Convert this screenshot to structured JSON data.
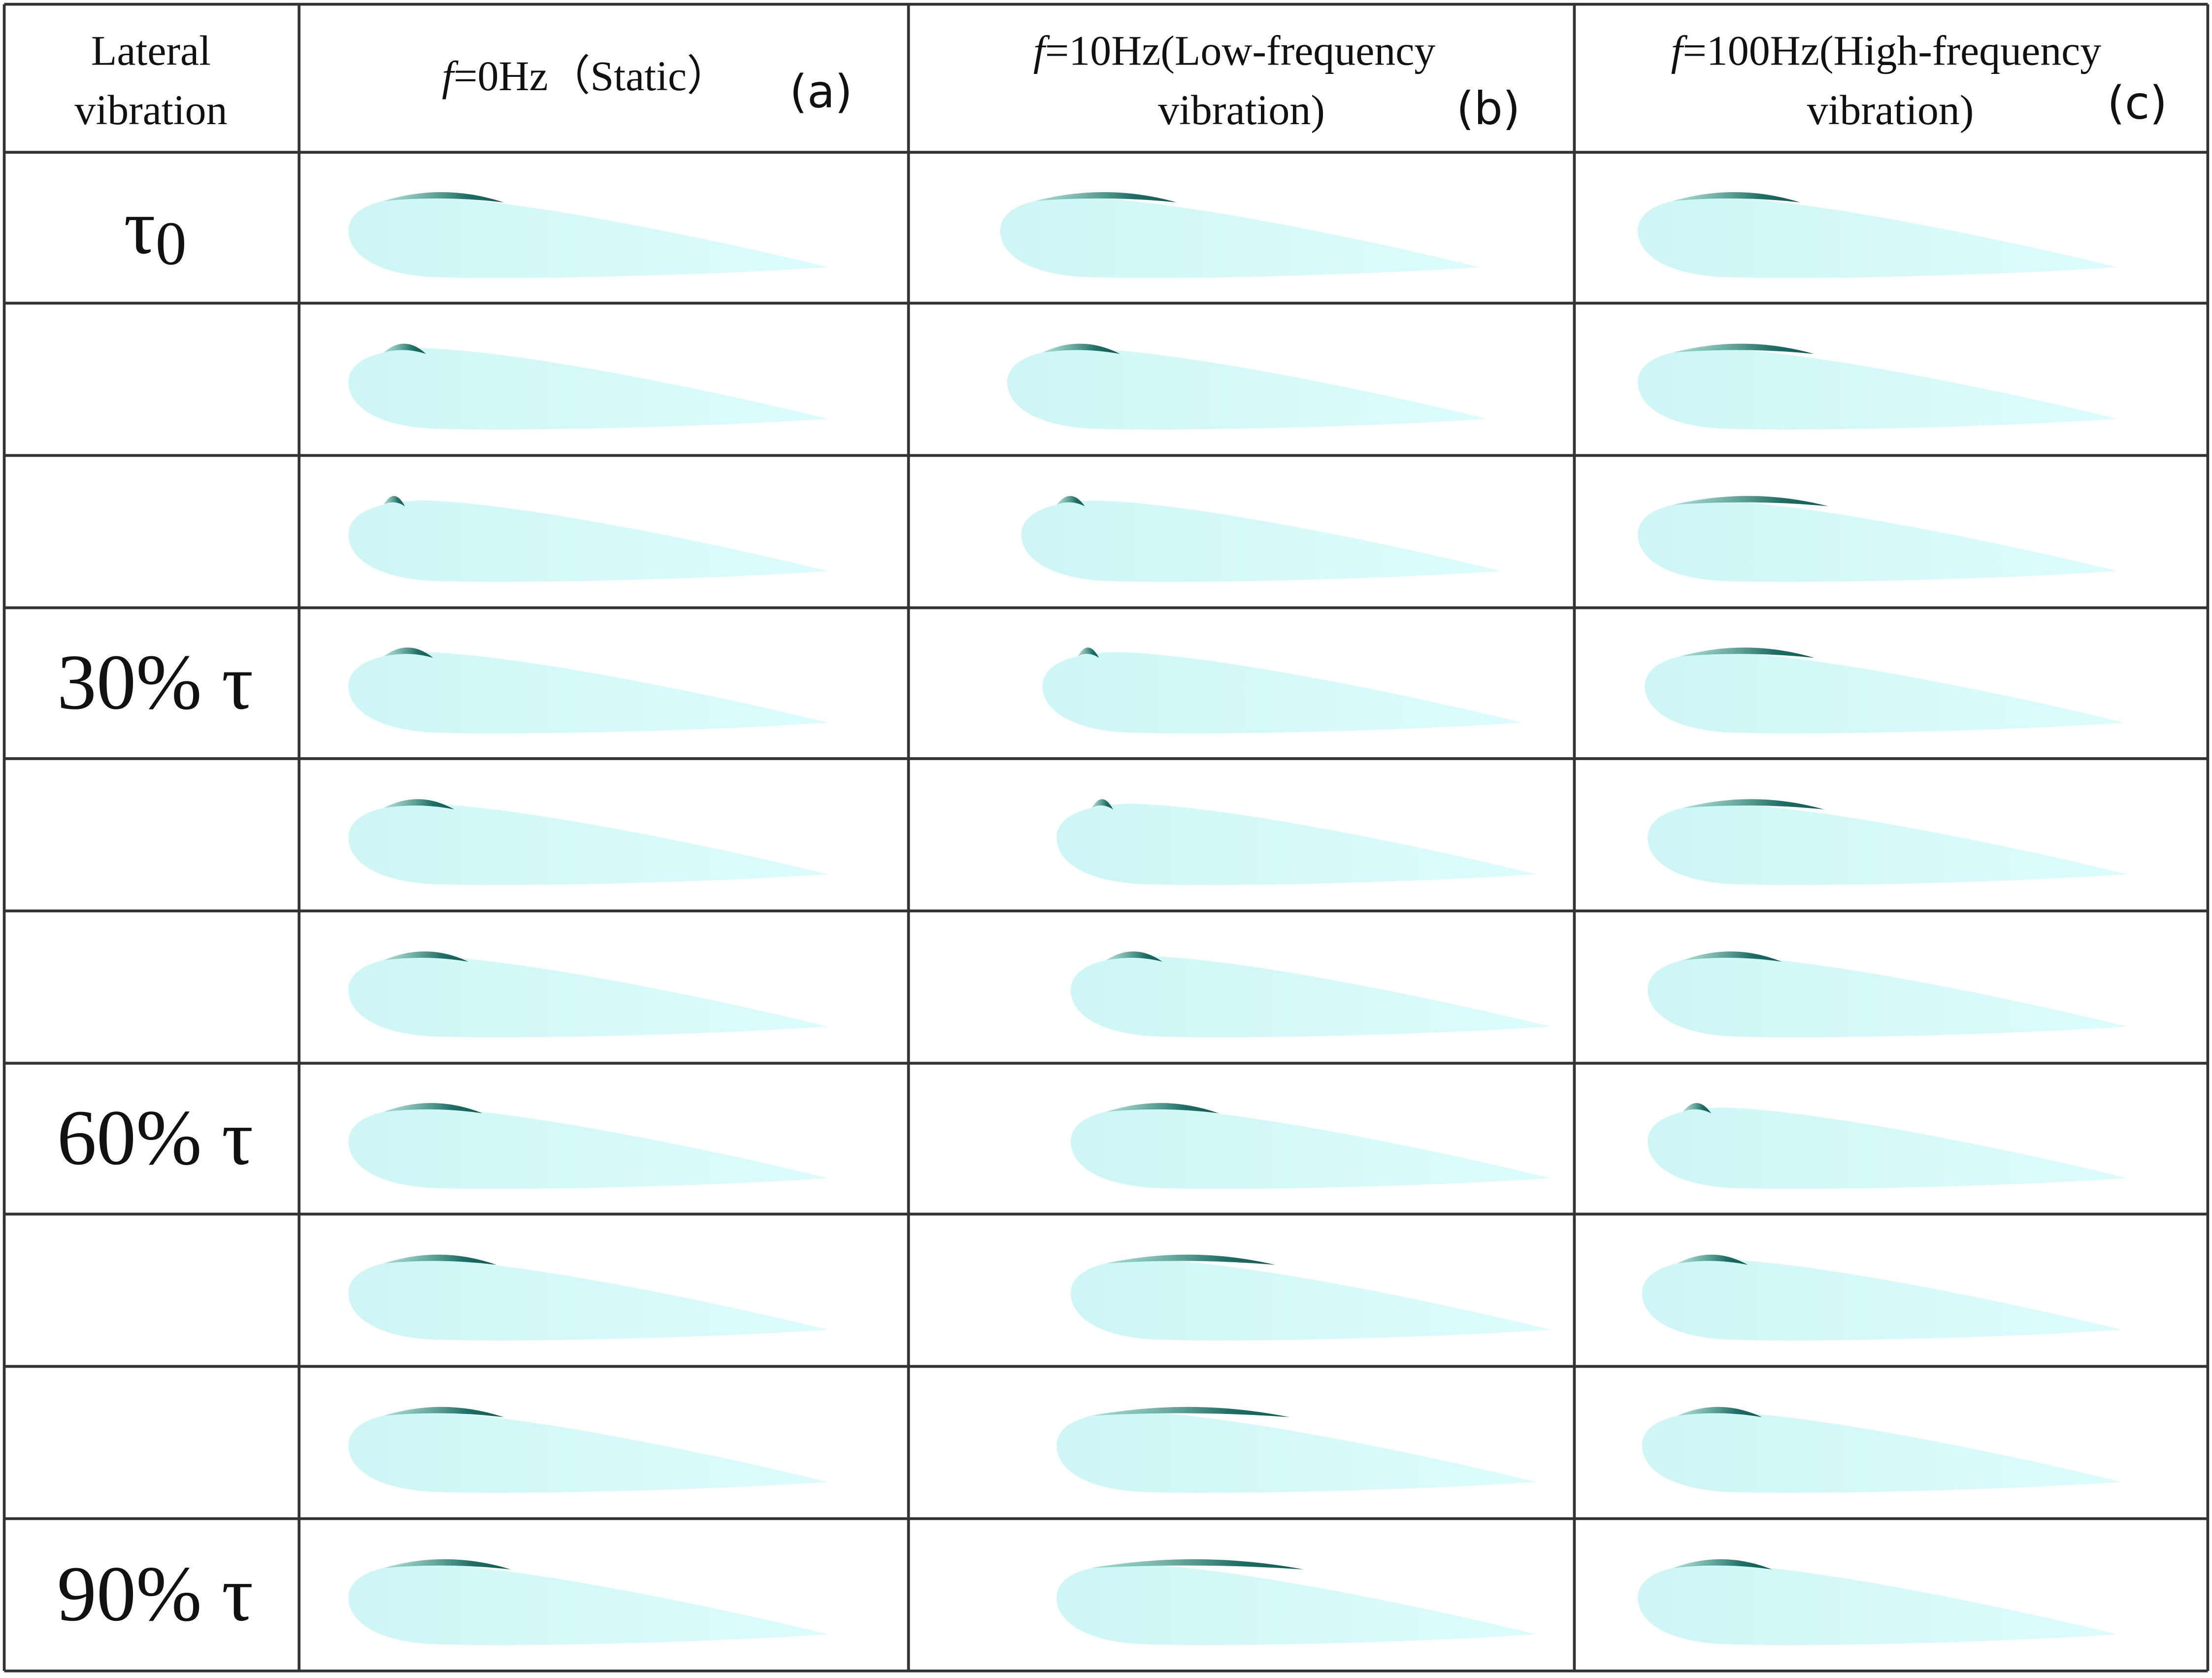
{
  "table": {
    "corner": [
      "Lateral",
      "vibration"
    ],
    "columns": [
      {
        "prefix": "f",
        "lines": [
          "=0Hz（Static）"
        ],
        "tag": "(a)"
      },
      {
        "prefix": "f",
        "lines": [
          "=10Hz(Low-frequency",
          "vibration)"
        ],
        "tag": "(b)"
      },
      {
        "prefix": "f",
        "lines": [
          "=100Hz(High-frequency",
          "vibration)"
        ],
        "tag": "(c)"
      }
    ],
    "rows": [
      {
        "label": {
          "main": "τ",
          "sub": "0"
        }
      },
      {
        "label": null
      },
      {
        "label": null
      },
      {
        "label": {
          "main": "30% τ"
        }
      },
      {
        "label": null
      },
      {
        "label": null
      },
      {
        "label": {
          "main": "60% τ"
        }
      },
      {
        "label": null
      },
      {
        "label": null
      },
      {
        "label": {
          "main": "90% τ"
        }
      }
    ]
  }
}
